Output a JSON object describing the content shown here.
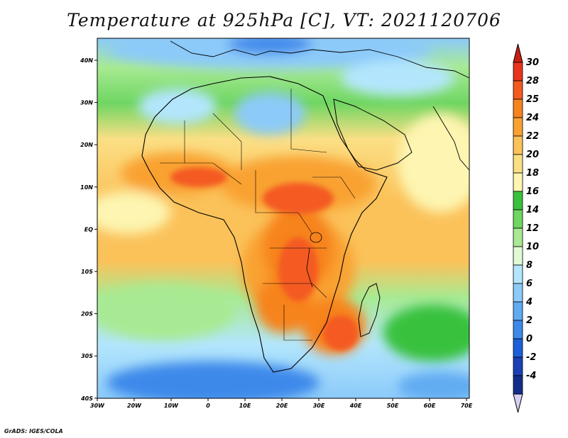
{
  "title": "Temperature at 925hPa [C], VT: 2021120706",
  "credit": "GrADS: IGES/COLA",
  "map": {
    "variable": "Temperature",
    "level": "925hPa",
    "units": "C",
    "valid_time": "2021120706",
    "region": "Africa",
    "lon_labels": [
      "30W",
      "20W",
      "10W",
      "0",
      "10E",
      "20E",
      "30E",
      "40E",
      "50E",
      "60E",
      "70E"
    ],
    "lat_labels": [
      "40N",
      "30N",
      "20N",
      "10N",
      "EQ",
      "10S",
      "20S",
      "30S",
      "40S"
    ]
  },
  "colorbar": {
    "labels": [
      "30",
      "28",
      "25",
      "24",
      "22",
      "20",
      "18",
      "16",
      "14",
      "12",
      "10",
      "8",
      "6",
      "4",
      "2",
      "0",
      "-2",
      "-4"
    ],
    "colors": [
      "#e8341d",
      "#f45a20",
      "#f7831f",
      "#f9a233",
      "#fbc25a",
      "#fbdf85",
      "#fdf5b1",
      "#39c13c",
      "#6fd662",
      "#a8ea93",
      "#e0fad5",
      "#b3e6fd",
      "#8ccaf9",
      "#60abf2",
      "#3c89ea",
      "#1c5fd8",
      "#1a3fb6",
      "#142d8a"
    ],
    "overflow_high_color": "#c81e10",
    "overflow_low_color": "#d7d0f5"
  }
}
